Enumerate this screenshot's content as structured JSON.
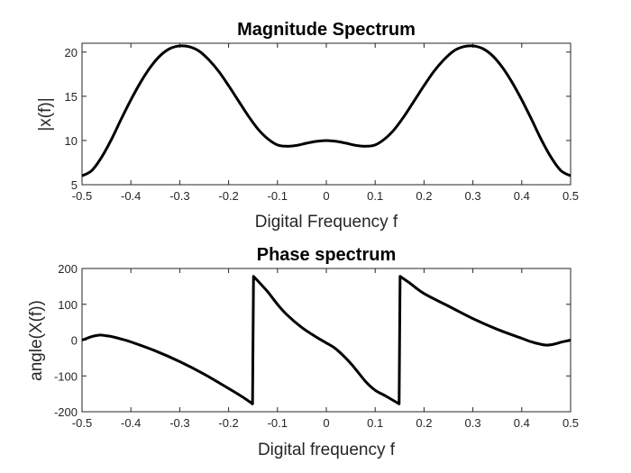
{
  "chart_data": [
    {
      "type": "line",
      "title": "Magnitude Spectrum",
      "xlabel": "Digital Frequency f",
      "ylabel": "|x(f)|",
      "xlim": [
        -0.5,
        0.5
      ],
      "ylim": [
        5,
        21
      ],
      "x_ticks": [
        "-0.5",
        "-0.4",
        "-0.3",
        "-0.2",
        "-0.1",
        "0",
        "0.1",
        "0.2",
        "0.3",
        "0.4",
        "0.5"
      ],
      "y_ticks": [
        "5",
        "10",
        "15",
        "20"
      ],
      "grid": false,
      "color": "#000000",
      "series": [
        {
          "x": [
            -0.5,
            -0.48,
            -0.46,
            -0.44,
            -0.42,
            -0.4,
            -0.38,
            -0.36,
            -0.34,
            -0.32,
            -0.3,
            -0.28,
            -0.26,
            -0.24,
            -0.22,
            -0.2,
            -0.18,
            -0.16,
            -0.14,
            -0.12,
            -0.1,
            -0.08,
            -0.06,
            -0.04,
            -0.02,
            0,
            0.02,
            0.04,
            0.06,
            0.08,
            0.1,
            0.12,
            0.14,
            0.16,
            0.18,
            0.2,
            0.22,
            0.24,
            0.26,
            0.28,
            0.3,
            0.32,
            0.34,
            0.36,
            0.38,
            0.4,
            0.42,
            0.44,
            0.46,
            0.48,
            0.5
          ],
          "y": [
            6.0,
            6.6,
            8.1,
            10.1,
            12.4,
            14.6,
            16.6,
            18.3,
            19.6,
            20.4,
            20.7,
            20.6,
            20.1,
            19.1,
            17.8,
            16.2,
            14.5,
            12.8,
            11.3,
            10.2,
            9.5,
            9.35,
            9.45,
            9.7,
            9.9,
            10.0,
            9.9,
            9.7,
            9.45,
            9.35,
            9.5,
            10.2,
            11.3,
            12.8,
            14.5,
            16.2,
            17.8,
            19.1,
            20.1,
            20.6,
            20.7,
            20.4,
            19.6,
            18.3,
            16.6,
            14.6,
            12.4,
            10.1,
            8.1,
            6.6,
            6.0
          ]
        }
      ]
    },
    {
      "type": "line",
      "title": "Phase spectrum",
      "xlabel": "Digital frequency f",
      "ylabel": "angle(X(f))",
      "xlim": [
        -0.5,
        0.5
      ],
      "ylim": [
        -200,
        200
      ],
      "x_ticks": [
        "-0.5",
        "-0.4",
        "-0.3",
        "-0.2",
        "-0.1",
        "0",
        "0.1",
        "0.2",
        "0.3",
        "0.4",
        "0.5"
      ],
      "y_ticks": [
        "-200",
        "-100",
        "0",
        "100",
        "200"
      ],
      "grid": false,
      "color": "#000000",
      "series": [
        {
          "x": [
            -0.5,
            -0.49,
            -0.48,
            -0.47,
            -0.46,
            -0.45,
            -0.44,
            -0.42,
            -0.4,
            -0.35,
            -0.3,
            -0.25,
            -0.2,
            -0.17,
            -0.151,
            -0.149,
            -0.14,
            -0.12,
            -0.1,
            -0.08,
            -0.05,
            -0.02,
            0,
            0.02,
            0.05,
            0.08,
            0.1,
            0.12,
            0.149,
            0.151,
            0.17,
            0.2,
            0.25,
            0.3,
            0.35,
            0.4,
            0.42,
            0.44,
            0.45,
            0.46,
            0.47,
            0.48,
            0.49,
            0.5
          ],
          "y": [
            0,
            5,
            10,
            13,
            14,
            12,
            10,
            3,
            -5,
            -30,
            -60,
            -95,
            -135,
            -160,
            -178,
            178,
            165,
            135,
            100,
            70,
            35,
            8,
            -8,
            -25,
            -65,
            -115,
            -140,
            -155,
            -178,
            178,
            160,
            130,
            95,
            60,
            30,
            5,
            -5,
            -12,
            -14,
            -13,
            -10,
            -6,
            -3,
            0
          ]
        }
      ]
    }
  ]
}
